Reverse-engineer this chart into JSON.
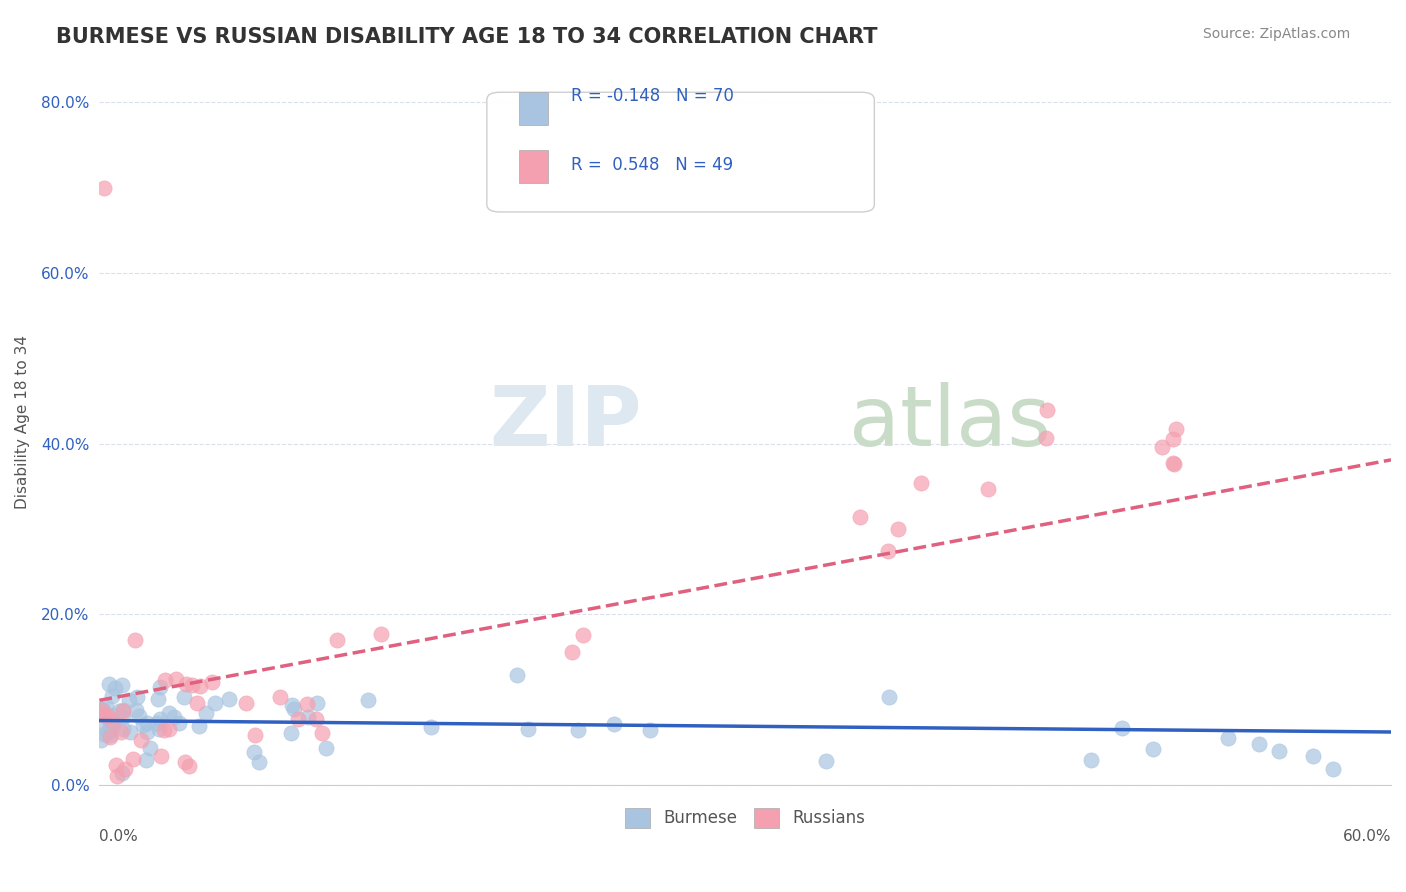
{
  "title": "BURMESE VS RUSSIAN DISABILITY AGE 18 TO 34 CORRELATION CHART",
  "source": "Source: ZipAtlas.com",
  "ylabel": "Disability Age 18 to 34",
  "legend_labels": [
    "Burmese",
    "Russians"
  ],
  "burmese_R": -0.148,
  "burmese_N": 70,
  "russian_R": 0.548,
  "russian_N": 49,
  "burmese_color": "#a8c4e0",
  "russian_color": "#f4a0b0",
  "burmese_line_color": "#3060c0",
  "russian_line_color": "#e06080",
  "xlim": [
    0,
    0.6
  ],
  "ylim": [
    0,
    0.85
  ],
  "ytick_vals": [
    0.0,
    0.2,
    0.4,
    0.6,
    0.8
  ],
  "ytick_labels": [
    "0.0%",
    "20.0%",
    "40.0%",
    "60.0%",
    "80.0%"
  ]
}
